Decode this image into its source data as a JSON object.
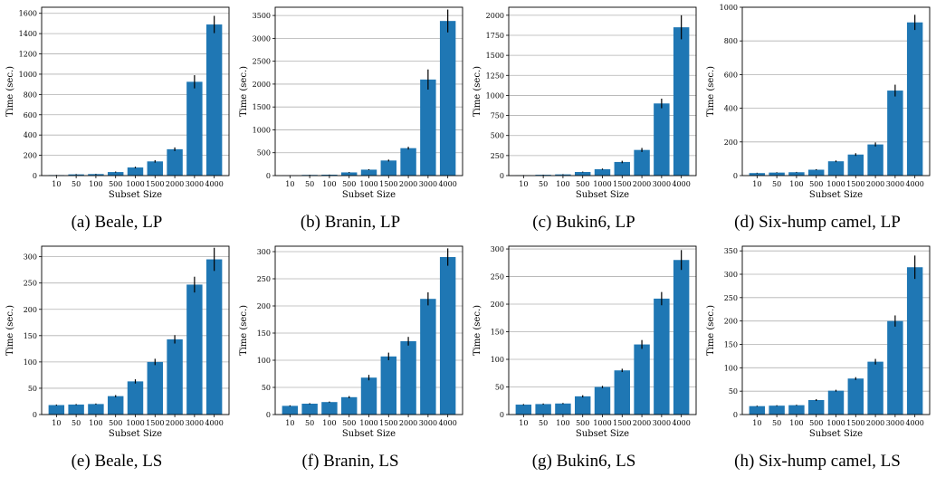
{
  "chart_data": [
    {
      "type": "bar",
      "caption": "(a) Beale, LP",
      "categories": [
        "10",
        "50",
        "100",
        "500",
        "1000",
        "1500",
        "2000",
        "3000",
        "4000"
      ],
      "values": [
        5,
        12,
        15,
        35,
        80,
        140,
        260,
        925,
        1490
      ],
      "errors": [
        2,
        3,
        3,
        5,
        8,
        12,
        18,
        65,
        85
      ],
      "xlabel": "Subset Size",
      "ylabel": "Time (sec.)",
      "ylim": [
        0,
        1660
      ],
      "yticks": [
        0,
        200,
        400,
        600,
        800,
        1000,
        1200,
        1400,
        1600
      ],
      "grid": true
    },
    {
      "type": "bar",
      "caption": "(b) Branin, LP",
      "categories": [
        "10",
        "50",
        "100",
        "500",
        "1000",
        "1500",
        "2000",
        "3000",
        "4000"
      ],
      "values": [
        5,
        15,
        20,
        70,
        130,
        330,
        600,
        2100,
        3380
      ],
      "errors": [
        2,
        3,
        3,
        8,
        10,
        20,
        30,
        220,
        250
      ],
      "xlabel": "Subset Size",
      "ylabel": "Time (sec.)",
      "ylim": [
        0,
        3680
      ],
      "yticks": [
        0,
        500,
        1000,
        1500,
        2000,
        2500,
        3000,
        3500
      ],
      "grid": true
    },
    {
      "type": "bar",
      "caption": "(c) Bukin6, LP",
      "categories": [
        "10",
        "50",
        "100",
        "500",
        "1000",
        "1500",
        "2000",
        "3000",
        "4000"
      ],
      "values": [
        5,
        10,
        15,
        45,
        80,
        170,
        320,
        900,
        1850
      ],
      "errors": [
        2,
        2,
        3,
        5,
        8,
        15,
        25,
        60,
        150
      ],
      "xlabel": "Subset Size",
      "ylabel": "Time (sec.)",
      "ylim": [
        0,
        2100
      ],
      "yticks": [
        0,
        250,
        500,
        750,
        1000,
        1250,
        1500,
        1750,
        2000
      ],
      "grid": true
    },
    {
      "type": "bar",
      "caption": "(d) Six-hump camel, LP",
      "categories": [
        "10",
        "50",
        "100",
        "500",
        "1000",
        "1500",
        "2000",
        "3000",
        "4000"
      ],
      "values": [
        15,
        18,
        20,
        35,
        85,
        125,
        185,
        505,
        910
      ],
      "errors": [
        2,
        2,
        2,
        3,
        5,
        8,
        12,
        35,
        45
      ],
      "xlabel": "Subset Size",
      "ylabel": "Time (sec.)",
      "ylim": [
        0,
        1000
      ],
      "yticks": [
        0,
        200,
        400,
        600,
        800,
        1000
      ],
      "grid": true
    },
    {
      "type": "bar",
      "caption": "(e) Beale, LS",
      "categories": [
        "10",
        "50",
        "100",
        "500",
        "1000",
        "1500",
        "2000",
        "3000",
        "4000"
      ],
      "values": [
        18,
        19,
        20,
        35,
        63,
        100,
        143,
        247,
        295
      ],
      "errors": [
        1,
        1,
        1,
        2,
        4,
        6,
        8,
        15,
        22
      ],
      "xlabel": "Subset Size",
      "ylabel": "Time (sec.)",
      "ylim": [
        0,
        320
      ],
      "yticks": [
        0,
        50,
        100,
        150,
        200,
        250,
        300
      ],
      "grid": true
    },
    {
      "type": "bar",
      "caption": "(f) Branin, LS",
      "categories": [
        "10",
        "50",
        "100",
        "500",
        "1000",
        "1500",
        "2000",
        "3000",
        "4000"
      ],
      "values": [
        16,
        20,
        23,
        32,
        68,
        107,
        135,
        213,
        290
      ],
      "errors": [
        1,
        1,
        1,
        2,
        5,
        7,
        8,
        12,
        16
      ],
      "xlabel": "Subset Size",
      "ylabel": "Time (sec.)",
      "ylim": [
        0,
        310
      ],
      "yticks": [
        0,
        50,
        100,
        150,
        200,
        250,
        300
      ],
      "grid": true
    },
    {
      "type": "bar",
      "caption": "(g) Bukin6, LS",
      "categories": [
        "10",
        "50",
        "100",
        "500",
        "1000",
        "1500",
        "2000",
        "3000",
        "4000"
      ],
      "values": [
        18,
        19,
        20,
        33,
        50,
        80,
        127,
        210,
        280
      ],
      "errors": [
        1,
        1,
        1,
        2,
        2,
        3,
        8,
        12,
        18
      ],
      "xlabel": "Subset Size",
      "ylabel": "Time (sec.)",
      "ylim": [
        0,
        305
      ],
      "yticks": [
        0,
        50,
        100,
        150,
        200,
        250,
        300
      ],
      "grid": true
    },
    {
      "type": "bar",
      "caption": "(h) Six-hump camel, LS",
      "categories": [
        "10",
        "50",
        "100",
        "500",
        "1000",
        "1500",
        "2000",
        "3000",
        "4000"
      ],
      "values": [
        18,
        19,
        20,
        31,
        51,
        77,
        113,
        200,
        315
      ],
      "errors": [
        1,
        1,
        1,
        2,
        2,
        3,
        6,
        12,
        25
      ],
      "xlabel": "Subset Size",
      "ylabel": "Time (sec.)",
      "ylim": [
        0,
        360
      ],
      "yticks": [
        0,
        50,
        100,
        150,
        200,
        250,
        300,
        350
      ],
      "grid": true
    }
  ],
  "colors": {
    "bar": "#1f77b4",
    "error": "#000000",
    "grid": "#b0b0b0"
  }
}
